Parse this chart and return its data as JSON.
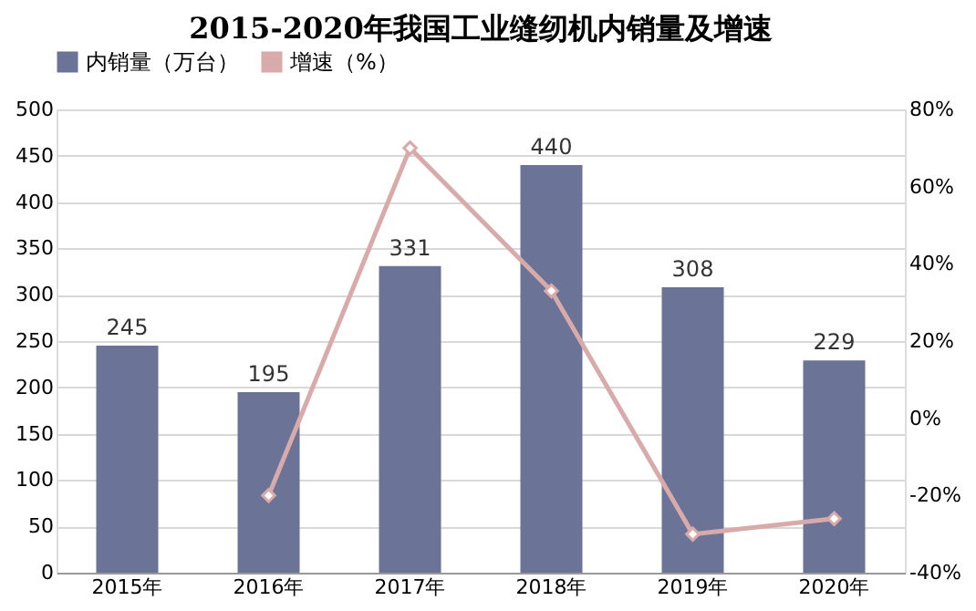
{
  "chart_data": {
    "type": "bar",
    "title": "2015-2020年我国工业缝纫机内销量及增速",
    "categories": [
      "2015年",
      "2016年",
      "2017年",
      "2018年",
      "2019年",
      "2020年"
    ],
    "series": [
      {
        "name": "内销量（万台）",
        "color": "#6b7496",
        "values": [
          245,
          195,
          331,
          440,
          308,
          229
        ],
        "value_labels": [
          "245",
          "195",
          "331",
          "440",
          "308",
          "229"
        ]
      },
      {
        "name": "增速（%）",
        "type": "line",
        "axis": "y2",
        "color": "#d8aaaa",
        "marker": "diamond",
        "values": [
          null,
          -20,
          70,
          33,
          -30,
          -26
        ]
      }
    ],
    "ylim": [
      0,
      500
    ],
    "yticks": [
      0,
      50,
      100,
      150,
      200,
      250,
      300,
      350,
      400,
      450,
      500
    ],
    "y2lim": [
      -40,
      80
    ],
    "y2ticks": [
      {
        "value": -40,
        "label": "-40%"
      },
      {
        "value": -20,
        "label": "-20%"
      },
      {
        "value": 0,
        "label": "0%"
      },
      {
        "value": 20,
        "label": "20%"
      },
      {
        "value": 40,
        "label": "40%"
      },
      {
        "value": 60,
        "label": "60%"
      },
      {
        "value": 80,
        "label": "80%"
      }
    ],
    "grid": "y",
    "legend": "top"
  }
}
